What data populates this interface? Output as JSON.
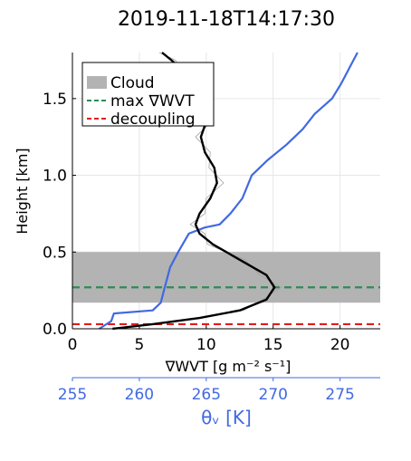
{
  "chart_data": {
    "type": "line",
    "title": "2019-11-18T14:17:30",
    "xlabel": "∇WVT [g m⁻² s⁻¹]",
    "x2label": "θᵥ [K]",
    "ylabel": "Height [km]",
    "xlim": [
      0,
      23
    ],
    "x2lim": [
      255,
      278
    ],
    "ylim": [
      0,
      1.8
    ],
    "xticks": [
      "0",
      "5",
      "10",
      "15",
      "20"
    ],
    "x2ticks": [
      "255",
      "260",
      "265",
      "270",
      "275"
    ],
    "yticks": [
      "0.0",
      "0.5",
      "1.0",
      "1.5"
    ],
    "grid": true,
    "legend_position": "top-left",
    "legend": [
      {
        "label": "Cloud",
        "kind": "patch",
        "color": "#b3b3b3"
      },
      {
        "label": "max ∇WVT",
        "kind": "dashed",
        "color": "#2e8b57"
      },
      {
        "label": "decoupling",
        "kind": "dashed",
        "color": "#e31a1c"
      }
    ],
    "cloud_layer": {
      "bottom": 0.17,
      "top": 0.5,
      "color": "#b3b3b3"
    },
    "max_wvt_height": 0.27,
    "decoupling_height": 0.03,
    "series": [
      {
        "axis": "bottom",
        "color": "#000000",
        "points": [
          [
            3.0,
            0.0
          ],
          [
            6.0,
            0.03
          ],
          [
            9.5,
            0.07
          ],
          [
            12.5,
            0.12
          ],
          [
            14.5,
            0.19
          ],
          [
            15.1,
            0.27
          ],
          [
            14.5,
            0.35
          ],
          [
            12.5,
            0.45
          ],
          [
            10.5,
            0.55
          ],
          [
            9.5,
            0.62
          ],
          [
            9.2,
            0.68
          ],
          [
            9.5,
            0.75
          ],
          [
            10.3,
            0.85
          ],
          [
            10.8,
            0.95
          ],
          [
            10.6,
            1.05
          ],
          [
            9.9,
            1.15
          ],
          [
            9.6,
            1.25
          ],
          [
            10.0,
            1.35
          ],
          [
            10.4,
            1.45
          ],
          [
            10.0,
            1.55
          ],
          [
            8.7,
            1.65
          ],
          [
            7.4,
            1.75
          ],
          [
            6.7,
            1.8
          ]
        ]
      },
      {
        "axis": "bottom",
        "color": "#a0a0a0",
        "points": [
          [
            3.0,
            0.0
          ],
          [
            6.2,
            0.03
          ],
          [
            9.3,
            0.07
          ],
          [
            12.8,
            0.12
          ],
          [
            14.2,
            0.19
          ],
          [
            15.6,
            0.27
          ],
          [
            14.0,
            0.35
          ],
          [
            12.9,
            0.45
          ],
          [
            10.1,
            0.55
          ],
          [
            9.9,
            0.62
          ],
          [
            8.8,
            0.68
          ],
          [
            9.9,
            0.75
          ],
          [
            10.0,
            0.85
          ],
          [
            11.3,
            0.95
          ],
          [
            10.2,
            1.05
          ],
          [
            10.3,
            1.15
          ],
          [
            9.2,
            1.25
          ],
          [
            10.4,
            1.35
          ],
          [
            10.1,
            1.45
          ],
          [
            10.4,
            1.55
          ],
          [
            8.4,
            1.65
          ],
          [
            7.7,
            1.75
          ],
          [
            6.5,
            1.8
          ]
        ]
      },
      {
        "axis": "top",
        "color": "#4169e1",
        "points": [
          [
            257.0,
            0.0
          ],
          [
            257.9,
            0.05
          ],
          [
            258.1,
            0.1
          ],
          [
            261.0,
            0.12
          ],
          [
            261.6,
            0.17
          ],
          [
            261.9,
            0.27
          ],
          [
            262.3,
            0.4
          ],
          [
            262.9,
            0.5
          ],
          [
            263.7,
            0.62
          ],
          [
            264.9,
            0.66
          ],
          [
            266.0,
            0.68
          ],
          [
            266.8,
            0.75
          ],
          [
            267.7,
            0.85
          ],
          [
            268.4,
            1.0
          ],
          [
            269.6,
            1.1
          ],
          [
            271.0,
            1.2
          ],
          [
            272.2,
            1.3
          ],
          [
            273.1,
            1.4
          ],
          [
            274.4,
            1.5
          ],
          [
            275.1,
            1.6
          ],
          [
            275.7,
            1.7
          ],
          [
            276.3,
            1.8
          ]
        ]
      }
    ]
  }
}
